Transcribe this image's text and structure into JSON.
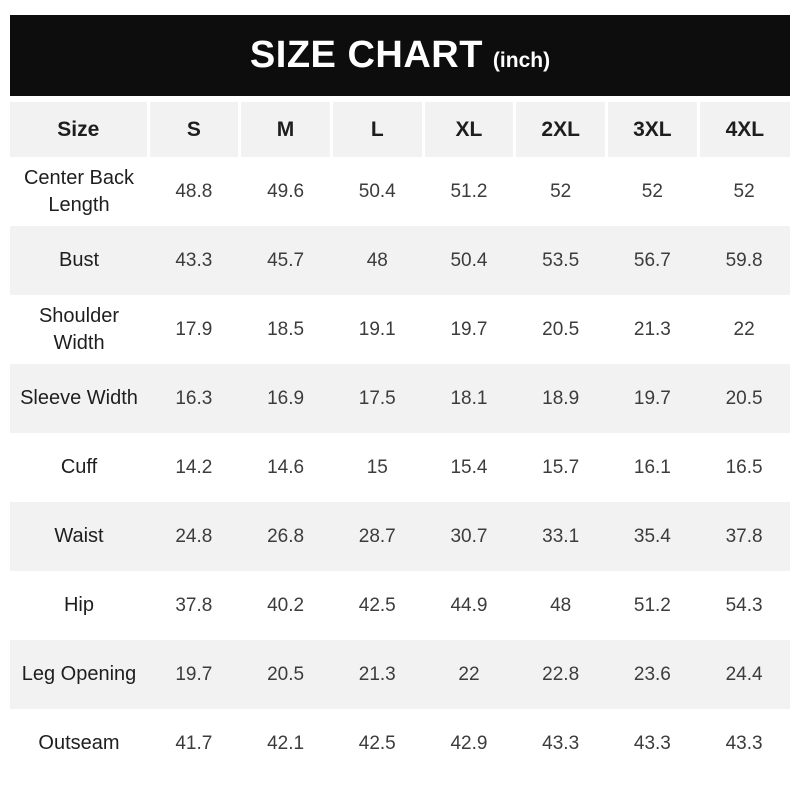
{
  "title": {
    "main": "SIZE CHART",
    "unit": "(inch)"
  },
  "colors": {
    "title_bar": "#0d0d0d",
    "stripe": "#f2f2f2",
    "header_text": "#ffffff",
    "label_text": "#1e1e1e",
    "value_text": "#3c3c3c"
  },
  "chart_data": {
    "type": "table",
    "title": "SIZE CHART",
    "unit": "(inch)",
    "columns": [
      "Size",
      "S",
      "M",
      "L",
      "XL",
      "2XL",
      "3XL",
      "4XL"
    ],
    "rows": [
      {
        "label": "Center Back Length",
        "values": [
          "48.8",
          "49.6",
          "50.4",
          "51.2",
          "52",
          "52",
          "52"
        ]
      },
      {
        "label": "Bust",
        "values": [
          "43.3",
          "45.7",
          "48",
          "50.4",
          "53.5",
          "56.7",
          "59.8"
        ]
      },
      {
        "label": "Shoulder Width",
        "values": [
          "17.9",
          "18.5",
          "19.1",
          "19.7",
          "20.5",
          "21.3",
          "22"
        ]
      },
      {
        "label": "Sleeve Width",
        "values": [
          "16.3",
          "16.9",
          "17.5",
          "18.1",
          "18.9",
          "19.7",
          "20.5"
        ]
      },
      {
        "label": "Cuff",
        "values": [
          "14.2",
          "14.6",
          "15",
          "15.4",
          "15.7",
          "16.1",
          "16.5"
        ]
      },
      {
        "label": "Waist",
        "values": [
          "24.8",
          "26.8",
          "28.7",
          "30.7",
          "33.1",
          "35.4",
          "37.8"
        ]
      },
      {
        "label": "Hip",
        "values": [
          "37.8",
          "40.2",
          "42.5",
          "44.9",
          "48",
          "51.2",
          "54.3"
        ]
      },
      {
        "label": "Leg Opening",
        "values": [
          "19.7",
          "20.5",
          "21.3",
          "22",
          "22.8",
          "23.6",
          "24.4"
        ]
      },
      {
        "label": "Outseam",
        "values": [
          "41.7",
          "42.1",
          "42.5",
          "42.9",
          "43.3",
          "43.3",
          "43.3"
        ]
      }
    ]
  }
}
